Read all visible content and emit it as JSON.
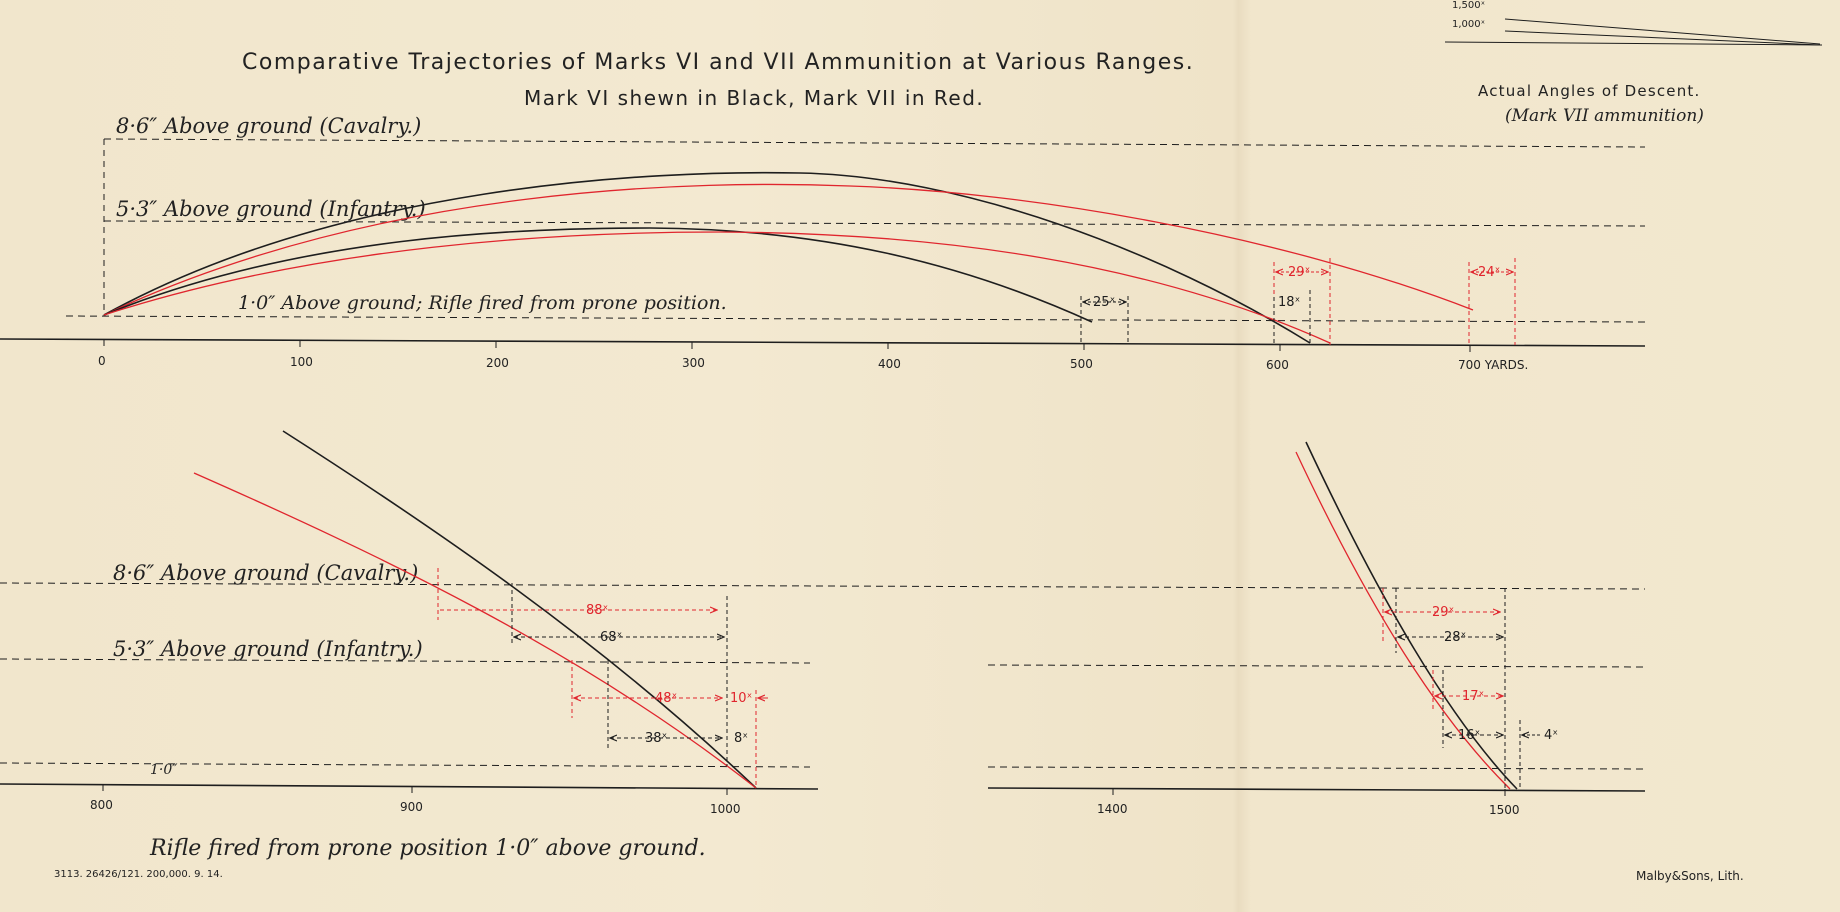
{
  "title": "Comparative Trajectories of Marks VI and VII Ammunition at Various Ranges.",
  "subtitle": "Mark VI shewn in Black, Mark VII in Red.",
  "angles_heading": "Actual Angles of Descent.",
  "angles_subheading": "(Mark VII ammunition)",
  "angle_labels": [
    "1,500ˣ",
    "1,000ˣ"
  ],
  "top_labels": {
    "cavalry": "8·6″ Above ground (Cavalry.)",
    "infantry": "5·3″ Above ground (Infantry.)",
    "prone": "1·0″ Above ground; Rifle fired from prone position."
  },
  "bottom_labels": {
    "cavalry": "8·6″ Above ground (Cavalry.)",
    "infantry": "5·3″ Above ground (Infantry.)",
    "ground": "1·0″",
    "caption": "Rifle fired from prone position 1·0″ above ground."
  },
  "top_axis": [
    "0",
    "100",
    "200",
    "300",
    "400",
    "500",
    "600",
    "700 YARDS."
  ],
  "bottom_axis_left": [
    "800",
    "900",
    "1000"
  ],
  "bottom_axis_right": [
    "1400",
    "1500"
  ],
  "top_measures": {
    "black_500": "25ˣ",
    "black_600": "18ˣ",
    "red_600": "29ˣ",
    "red_700": "24ˣ"
  },
  "bottom_left_measures": {
    "red_cav": "88ˣ",
    "black_cav": "68ˣ",
    "red_inf": "48ˣ",
    "black_inf": "38ˣ",
    "red_short": "10ˣ",
    "black_short": "8ˣ"
  },
  "bottom_right_measures": {
    "red_cav": "29ˣ",
    "black_cav": "28ˣ",
    "red_inf": "17ˣ",
    "black_inf": "16ˣ",
    "short": "4ˣ"
  },
  "footer_left": "3113. 26426/121. 200,000. 9. 14.",
  "footer_right": "Malby&Sons, Lith.",
  "colors": {
    "mark_vi": "#1e1e1e",
    "mark_vii": "#e0262e",
    "paper": "#f2e8cf"
  }
}
